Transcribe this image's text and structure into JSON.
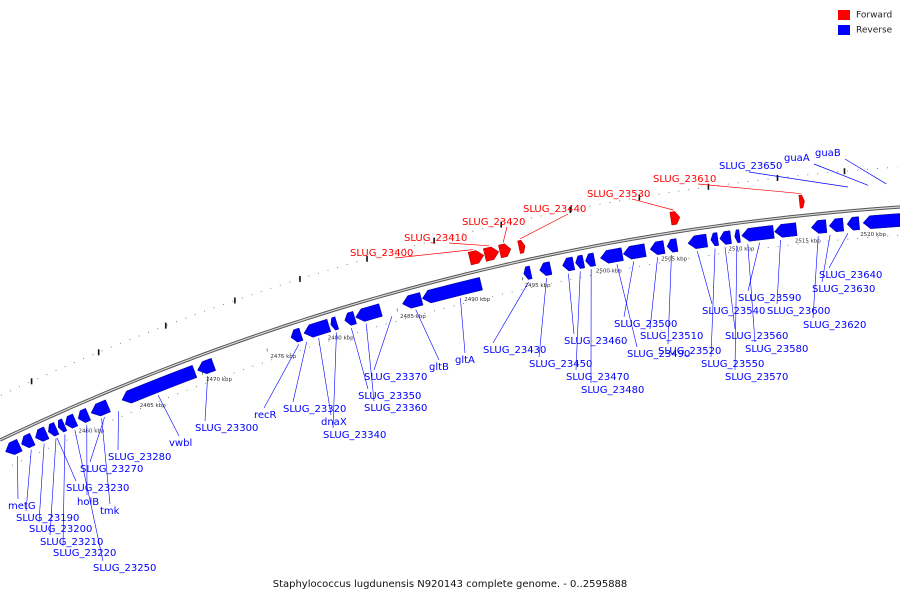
{
  "legend": [
    {
      "label": "Forward",
      "color": "#ff0000"
    },
    {
      "label": "Reverse",
      "color": "#0000ff"
    }
  ],
  "caption": "Staphylococcus lugdunensis N920143 complete genome. - 0..2595888",
  "ticks": [
    "2460 kbp",
    "2465 kbp",
    "2470 kbp",
    "2475 kbp",
    "2480 kbp",
    "2485 kbp",
    "2490 kbp",
    "2495 kbp",
    "2500 kbp",
    "2505 kbp",
    "2510 kbp",
    "2515 kbp",
    "2520 kbp"
  ],
  "forward_labels": [
    "SLUG_23400",
    "SLUG_23410",
    "SLUG_23420",
    "SLUG_23440",
    "SLUG_23530",
    "SLUG_23610"
  ],
  "reverse_top_labels": [
    "SLUG_23650",
    "guaA",
    "guaB"
  ],
  "reverse_labels": [
    "metG",
    "SLUG_23190",
    "SLUG_23200",
    "SLUG_23210",
    "SLUG_23220",
    "SLUG_23250",
    "holB",
    "tmk",
    "SLUG_23230",
    "SLUG_23270",
    "SLUG_23280",
    "vwbl",
    "SLUG_23300",
    "recR",
    "SLUG_23320",
    "dnaX",
    "SLUG_23340",
    "SLUG_23350",
    "SLUG_23360",
    "SLUG_23370",
    "gltB",
    "gltA",
    "SLUG_23430",
    "SLUG_23450",
    "SLUG_23460",
    "SLUG_23470",
    "SLUG_23480",
    "SLUG_23490",
    "SLUG_23500",
    "SLUG_23510",
    "SLUG_23520",
    "SLUG_23540",
    "SLUG_23550",
    "SLUG_23560",
    "SLUG_23570",
    "SLUG_23580",
    "SLUG_23590",
    "SLUG_23600",
    "SLUG_23620",
    "SLUG_23630",
    "SLUG_23640"
  ]
}
